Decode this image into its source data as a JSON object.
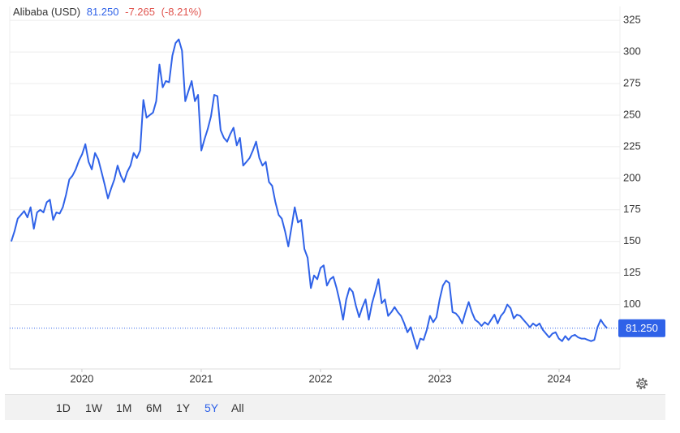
{
  "header": {
    "name": "Alibaba (USD)",
    "price": "81.250",
    "change": "-7.265",
    "change_pct": "(-8.21%)"
  },
  "chart_data": {
    "type": "line",
    "x": [
      2019.408,
      2019.435,
      2019.462,
      2019.489,
      2019.516,
      2019.543,
      2019.57,
      2019.597,
      2019.624,
      2019.651,
      2019.678,
      2019.705,
      2019.732,
      2019.759,
      2019.786,
      2019.813,
      2019.84,
      2019.867,
      2019.894,
      2019.921,
      2019.948,
      2019.975,
      2020.002,
      2020.029,
      2020.056,
      2020.083,
      2020.11,
      2020.137,
      2020.164,
      2020.191,
      2020.218,
      2020.245,
      2020.272,
      2020.299,
      2020.326,
      2020.353,
      2020.38,
      2020.407,
      2020.434,
      2020.461,
      2020.488,
      2020.515,
      2020.542,
      2020.569,
      2020.596,
      2020.623,
      2020.65,
      2020.677,
      2020.704,
      2020.731,
      2020.758,
      2020.785,
      2020.812,
      2020.839,
      2020.866,
      2020.893,
      2020.92,
      2020.947,
      2020.974,
      2021.001,
      2021.028,
      2021.055,
      2021.082,
      2021.109,
      2021.136,
      2021.163,
      2021.19,
      2021.217,
      2021.244,
      2021.271,
      2021.298,
      2021.325,
      2021.352,
      2021.379,
      2021.406,
      2021.433,
      2021.46,
      2021.487,
      2021.514,
      2021.541,
      2021.568,
      2021.595,
      2021.622,
      2021.649,
      2021.676,
      2021.703,
      2021.73,
      2021.757,
      2021.784,
      2021.811,
      2021.838,
      2021.865,
      2021.892,
      2021.919,
      2021.946,
      2021.973,
      2022.0,
      2022.027,
      2022.054,
      2022.081,
      2022.108,
      2022.135,
      2022.162,
      2022.189,
      2022.216,
      2022.243,
      2022.27,
      2022.297,
      2022.324,
      2022.351,
      2022.378,
      2022.405,
      2022.432,
      2022.459,
      2022.486,
      2022.513,
      2022.54,
      2022.567,
      2022.594,
      2022.621,
      2022.648,
      2022.675,
      2022.702,
      2022.729,
      2022.756,
      2022.783,
      2022.81,
      2022.837,
      2022.864,
      2022.891,
      2022.918,
      2022.945,
      2022.972,
      2022.999,
      2023.026,
      2023.053,
      2023.08,
      2023.107,
      2023.134,
      2023.161,
      2023.188,
      2023.215,
      2023.242,
      2023.269,
      2023.296,
      2023.323,
      2023.35,
      2023.377,
      2023.404,
      2023.431,
      2023.458,
      2023.485,
      2023.512,
      2023.539,
      2023.566,
      2023.593,
      2023.62,
      2023.647,
      2023.674,
      2023.701,
      2023.728,
      2023.755,
      2023.782,
      2023.809,
      2023.836,
      2023.863,
      2023.89,
      2023.917,
      2023.944,
      2023.971,
      2023.998,
      2024.025,
      2024.052,
      2024.079,
      2024.106,
      2024.133,
      2024.16,
      2024.187,
      2024.214,
      2024.241,
      2024.268,
      2024.295,
      2024.322,
      2024.349,
      2024.376,
      2024.403
    ],
    "series": [
      {
        "name": "Alibaba (USD)",
        "color": "#2f62e8",
        "values": [
          150,
          158,
          168,
          171,
          174,
          169,
          177,
          160,
          173,
          175,
          173,
          181,
          183,
          167,
          173,
          172,
          177,
          187,
          199,
          202,
          207,
          214,
          219,
          227,
          213,
          207,
          220,
          215,
          205,
          195,
          184,
          192,
          199,
          210,
          202,
          197,
          205,
          210,
          220,
          216,
          222,
          262,
          248,
          250,
          252,
          261,
          290,
          272,
          277,
          276,
          297,
          307,
          310,
          301,
          261,
          269,
          277,
          261,
          266,
          222,
          231,
          239,
          249,
          266,
          265,
          238,
          232,
          229,
          235,
          240,
          226,
          232,
          210,
          213,
          216,
          222,
          229,
          216,
          210,
          213,
          197,
          194,
          181,
          171,
          168,
          158,
          146,
          161,
          177,
          165,
          167,
          144,
          137,
          113,
          123,
          120,
          129,
          131,
          115,
          120,
          122,
          113,
          102,
          88,
          104,
          113,
          110,
          99,
          90,
          98,
          104,
          88,
          101,
          110,
          120,
          101,
          104,
          91,
          94,
          98,
          94,
          91,
          85,
          78,
          82,
          73,
          65,
          73,
          72,
          80,
          91,
          86,
          90,
          104,
          115,
          119,
          117,
          94,
          93,
          90,
          85,
          94,
          102,
          94,
          88,
          86,
          83,
          86,
          84,
          88,
          92,
          85,
          91,
          94,
          100,
          97,
          89,
          92,
          91,
          88,
          85,
          82,
          85,
          83,
          85,
          80,
          77,
          74,
          77,
          78,
          73,
          71,
          75,
          72,
          75,
          76,
          74,
          73,
          73,
          72,
          71,
          72,
          82,
          88,
          84,
          81.25
        ]
      }
    ],
    "last_price": {
      "value": 81.25,
      "label": "81.250"
    },
    "xlim": [
      2019.395,
      2024.483
    ],
    "xticks": [
      2020,
      2021,
      2022,
      2023,
      2024
    ],
    "ylim": [
      49,
      336
    ],
    "yticks": [
      100,
      125,
      150,
      175,
      200,
      225,
      250,
      275,
      300,
      325
    ],
    "grid": true
  },
  "range_buttons": [
    "1D",
    "1W",
    "1M",
    "6M",
    "1Y",
    "5Y",
    "All"
  ],
  "active_range": "5Y"
}
